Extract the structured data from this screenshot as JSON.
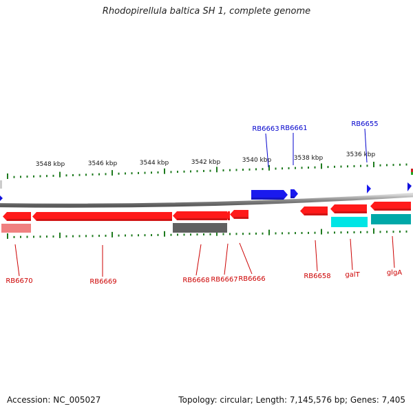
{
  "title": "Rhodopirellula baltica SH 1, complete genome",
  "accession": "Accession: NC_005027",
  "summary": "Topology: circular; Length: 7,145,576 bp; Genes: 7,405",
  "kbp_labels": [
    "3548 kbp",
    "3546 kbp",
    "3544 kbp",
    "3542 kbp",
    "3540 kbp",
    "3538 kbp",
    "3536 kbp"
  ],
  "gene_labels": {
    "above": [
      "RB6663",
      "RB6661",
      "RB6655"
    ],
    "below": [
      "RB6670",
      "RB6669",
      "RB6668",
      "RB6667",
      "RB6666",
      "RB6658",
      "galT",
      "glgA"
    ]
  },
  "colors": {
    "gene": "#ff1a1a",
    "gene_light": "#f08080",
    "reverse_gene": "#1a1aee",
    "gray_feature": "#606060",
    "cyan_feature": "#00e5e5",
    "teal_feature": "#00a8a8",
    "tick": "#1d7a1d",
    "label_red": "#cc0000",
    "label_blue": "#0000cc"
  }
}
